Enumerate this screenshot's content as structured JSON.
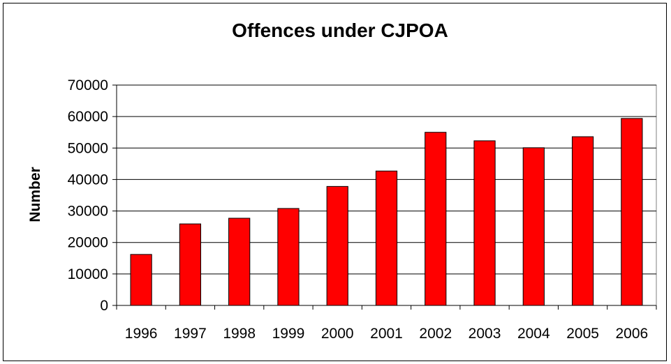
{
  "chart_data": {
    "type": "bar",
    "title": "Offences under CJPOA",
    "xlabel": "",
    "ylabel": "Number",
    "categories": [
      "1996",
      "1997",
      "1998",
      "1999",
      "2000",
      "2001",
      "2002",
      "2003",
      "2004",
      "2005",
      "2006"
    ],
    "values": [
      16200,
      25900,
      27700,
      30800,
      37800,
      42700,
      55000,
      52300,
      50100,
      53600,
      59400
    ],
    "ylim": [
      0,
      70000
    ],
    "yticks": [
      0,
      10000,
      20000,
      30000,
      40000,
      50000,
      60000,
      70000
    ],
    "grid": true,
    "legend": "none",
    "colors": {
      "bar": "#ff0000",
      "bar_stroke": "#000000",
      "plot_bg": "#ffffff",
      "grid": "#000000"
    }
  }
}
